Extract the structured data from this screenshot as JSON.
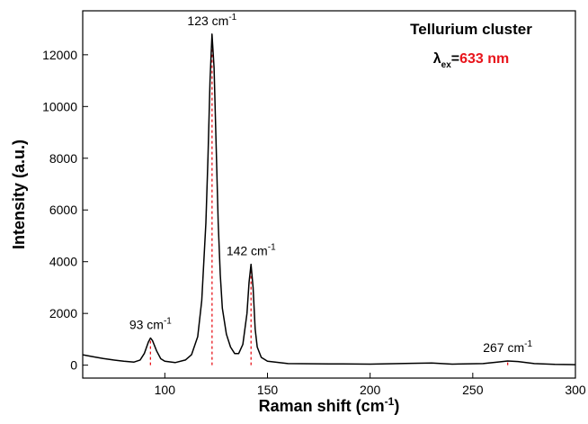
{
  "chart_data": {
    "type": "line",
    "x_label": {
      "text": "Raman shift (cm",
      "sup": "-1",
      "after": ")"
    },
    "y_label": "Intensity (a.u.)",
    "title": "Tellurium cluster",
    "excitation": {
      "symbol": "λ",
      "sub": "ex",
      "eq": "=",
      "value": "633 nm",
      "value_color": "#e8141b"
    },
    "xlim": [
      60,
      300
    ],
    "ylim": [
      -500,
      13700
    ],
    "xticks": [
      100,
      150,
      200,
      250,
      300
    ],
    "yticks": [
      0,
      2000,
      4000,
      6000,
      8000,
      10000,
      12000
    ],
    "series": [
      {
        "color": "#000000",
        "x": [
          60,
          65,
          70,
          75,
          80,
          85,
          88,
          90,
          92,
          93,
          94,
          96,
          98,
          100,
          105,
          110,
          113,
          116,
          118,
          120,
          121,
          122,
          123,
          124,
          125,
          126,
          127,
          128,
          130,
          132,
          134,
          136,
          138,
          140,
          141,
          142,
          143,
          144,
          145,
          147,
          150,
          160,
          180,
          200,
          220,
          230,
          240,
          255,
          262,
          267,
          272,
          280,
          290,
          300
        ],
        "values": [
          400,
          330,
          260,
          200,
          150,
          120,
          200,
          450,
          900,
          1050,
          950,
          550,
          250,
          150,
          100,
          200,
          400,
          1100,
          2500,
          5500,
          8000,
          11000,
          12800,
          11500,
          8500,
          5500,
          3500,
          2200,
          1200,
          700,
          450,
          450,
          800,
          2000,
          3200,
          3900,
          3000,
          1400,
          700,
          300,
          150,
          60,
          50,
          40,
          70,
          80,
          40,
          60,
          120,
          160,
          140,
          60,
          30,
          20
        ]
      }
    ],
    "peaks": {
      "color": "#e8141b",
      "items": [
        {
          "x": 93,
          "y": 1050,
          "text": "93 cm",
          "sup": "-1"
        },
        {
          "x": 123,
          "y": 12800,
          "text": "123 cm",
          "sup": "-1"
        },
        {
          "x": 142,
          "y": 3900,
          "text": "142 cm",
          "sup": "-1"
        },
        {
          "x": 267,
          "y": 160,
          "text": "267 cm",
          "sup": "-1"
        }
      ]
    }
  }
}
